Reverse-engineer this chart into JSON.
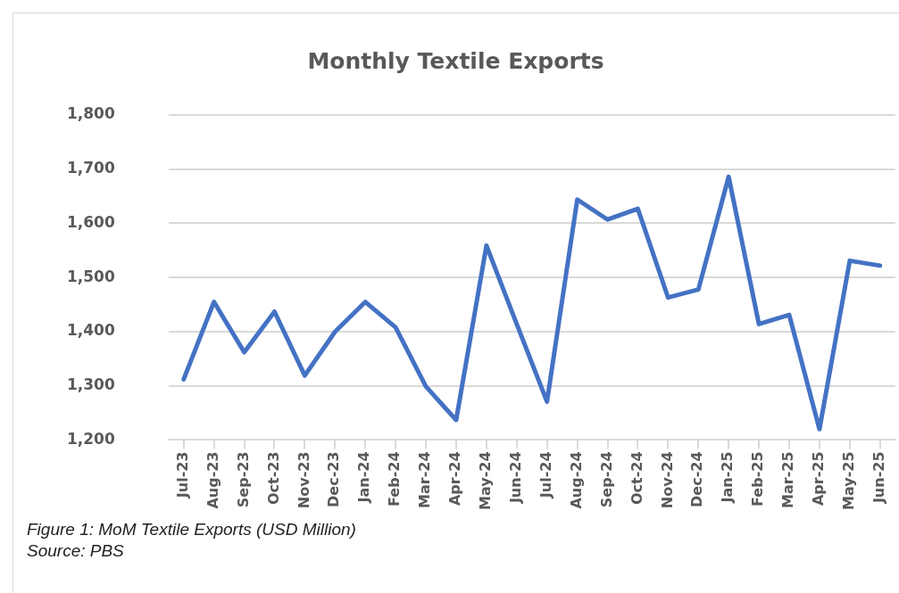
{
  "chart_data": {
    "type": "line",
    "title": "Monthly Textile Exports",
    "categories": [
      "Jul-23",
      "Aug-23",
      "Sep-23",
      "Oct-23",
      "Nov-23",
      "Dec-23",
      "Jan-24",
      "Feb-24",
      "Mar-24",
      "Apr-24",
      "May-24",
      "Jun-24",
      "Jul-24",
      "Aug-24",
      "Sep-24",
      "Oct-24",
      "Nov-24",
      "Dec-24",
      "Jan-25",
      "Feb-25",
      "Mar-25",
      "Apr-25",
      "May-25",
      "Jun-25"
    ],
    "series": [
      {
        "color": "#4472c4",
        "values": [
          1312,
          1455,
          1362,
          1437,
          1319,
          1400,
          1455,
          1408,
          1299,
          1237,
          1559,
          1414,
          1271,
          1644,
          1607,
          1627,
          1463,
          1478,
          1686,
          1414,
          1431,
          1220,
          1531,
          1522
        ]
      }
    ],
    "ylim": [
      1200,
      1800
    ],
    "yticks": [
      {
        "value": 1200,
        "label": "1,200"
      },
      {
        "value": 1300,
        "label": "1,300"
      },
      {
        "value": 1400,
        "label": "1,400"
      },
      {
        "value": 1500,
        "label": "1,500"
      },
      {
        "value": 1600,
        "label": "1,600"
      },
      {
        "value": 1700,
        "label": "1,700"
      },
      {
        "value": 1800,
        "label": "1,800"
      }
    ],
    "grid": "y",
    "legend": false,
    "marker": "none",
    "line_style": "solid",
    "annotations": [
      "Figure 1: MoM Textile Exports (USD Million)",
      "Source: PBS"
    ]
  }
}
